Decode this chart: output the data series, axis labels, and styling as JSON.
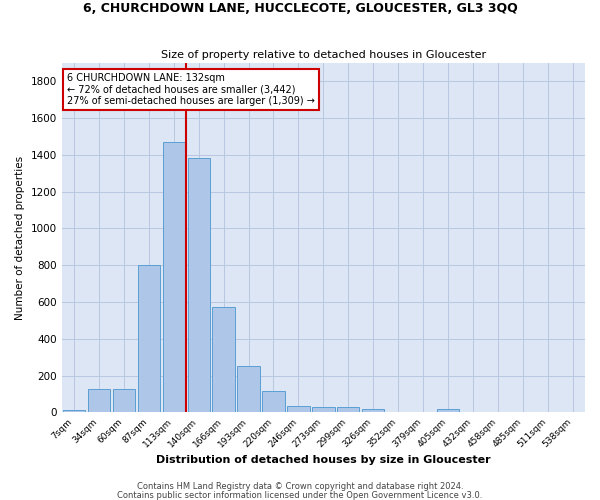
{
  "title": "6, CHURCHDOWN LANE, HUCCLECOTE, GLOUCESTER, GL3 3QQ",
  "subtitle": "Size of property relative to detached houses in Gloucester",
  "xlabel": "Distribution of detached houses by size in Gloucester",
  "ylabel": "Number of detached properties",
  "footer_line1": "Contains HM Land Registry data © Crown copyright and database right 2024.",
  "footer_line2": "Contains public sector information licensed under the Open Government Licence v3.0.",
  "bar_labels": [
    "7sqm",
    "34sqm",
    "60sqm",
    "87sqm",
    "113sqm",
    "140sqm",
    "166sqm",
    "193sqm",
    "220sqm",
    "246sqm",
    "273sqm",
    "299sqm",
    "326sqm",
    "352sqm",
    "379sqm",
    "405sqm",
    "432sqm",
    "458sqm",
    "485sqm",
    "511sqm",
    "538sqm"
  ],
  "bar_values": [
    15,
    130,
    130,
    800,
    1470,
    1380,
    575,
    250,
    115,
    35,
    30,
    30,
    20,
    0,
    0,
    20,
    0,
    0,
    0,
    0,
    0
  ],
  "bar_color": "#aec6e8",
  "bar_edgecolor": "#5a9fd4",
  "vline_x": 4.5,
  "annotation_text_line1": "6 CHURCHDOWN LANE: 132sqm",
  "annotation_text_line2": "← 72% of detached houses are smaller (3,442)",
  "annotation_text_line3": "27% of semi-detached houses are larger (1,309) →",
  "vline_color": "#cc0000",
  "annotation_box_color": "#cc0000",
  "annotation_text_color": "#000000",
  "background_color": "#ffffff",
  "plot_bg_color": "#dce6f5",
  "grid_color": "#b8c8e0",
  "ylim": [
    0,
    1900
  ],
  "yticks": [
    0,
    200,
    400,
    600,
    800,
    1000,
    1200,
    1400,
    1600,
    1800
  ]
}
